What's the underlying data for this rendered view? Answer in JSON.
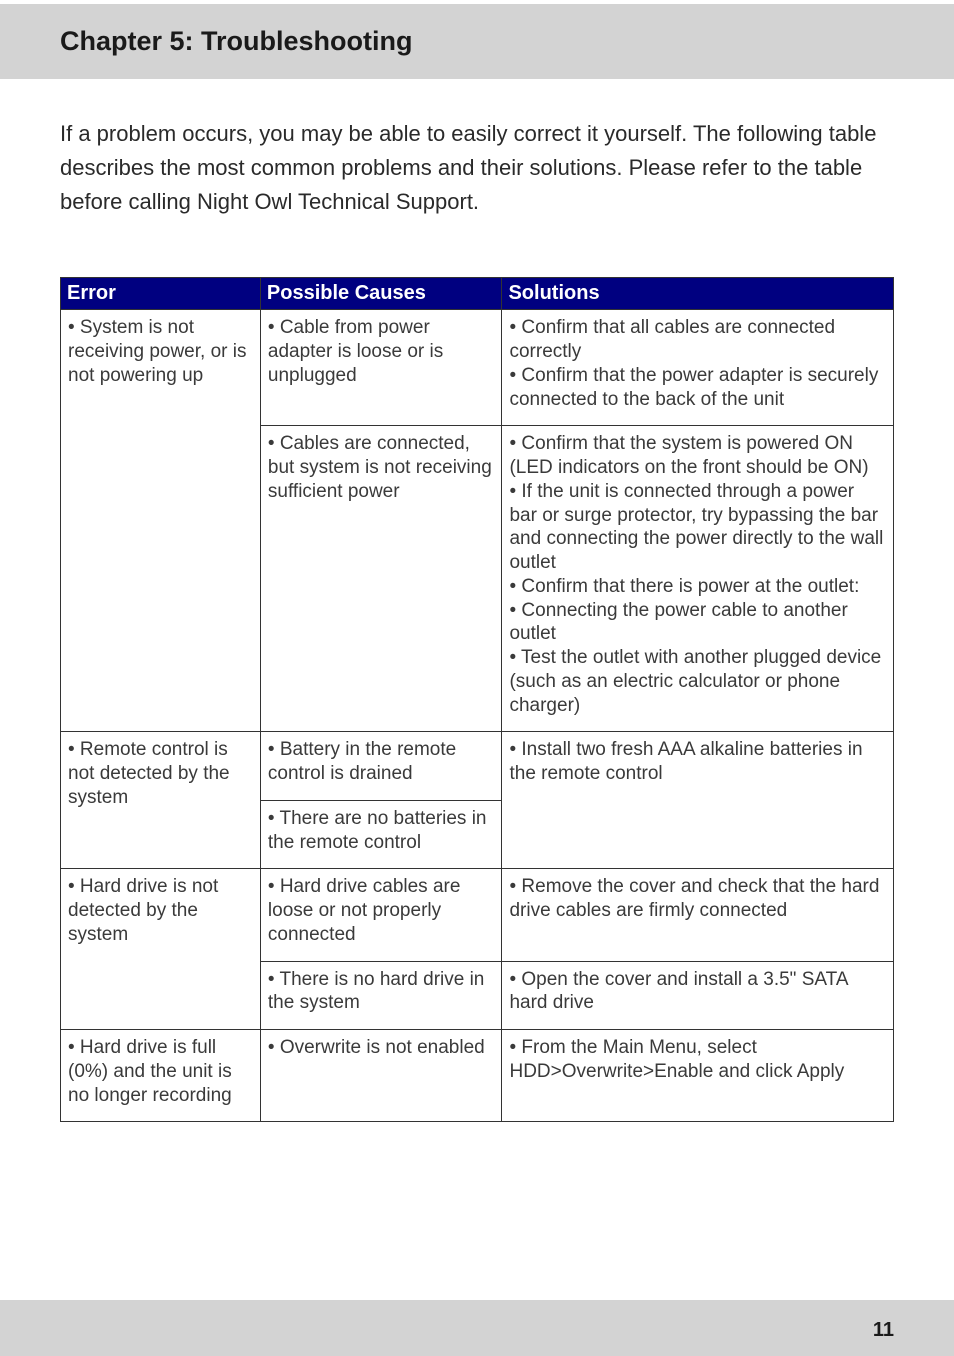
{
  "header": {
    "title": "Chapter 5: Troubleshooting"
  },
  "intro": "If a problem occurs, you may be able to easily correct it yourself. The following table describes the most common problems and their solutions. Please refer to the table before calling Night Owl Technical Support.",
  "table": {
    "columns": [
      "Error",
      "Possible Causes",
      "Solutions"
    ],
    "col_widths_pct": [
      24,
      29,
      47
    ],
    "header_bg": "#000080",
    "header_fg": "#ffffff",
    "border_color": "#333333",
    "body_font": "Arial Narrow",
    "body_fontsize_pt": 14,
    "header_fontsize_pt": 15,
    "rows": [
      {
        "error": "• System is not receiving power, or is not powering up",
        "error_rowspan": 2,
        "cause": "• Cable from power adapter is loose or is unplugged",
        "solution": "• Confirm that all cables are connected correctly\n• Confirm that the power adapter is securely connected to the back of the unit"
      },
      {
        "cause": "• Cables are connected, but system is not receiving sufficient power",
        "solution": "• Confirm that the system is powered ON (LED indicators on the front should be ON)\n• If the unit is connected through a power bar or surge protector, try bypassing the bar and connecting the power directly to the wall outlet\n• Confirm that there is power at the outlet:\n• Connecting the power cable to another outlet\n• Test the outlet with another plugged device (such as an electric calculator or phone charger)"
      },
      {
        "error": "• Remote control is not detected by the system",
        "error_rowspan": 2,
        "cause": "• Battery in the remote control is drained",
        "solution": "• Install two fresh AAA alkaline batteries in the remote control",
        "solution_rowspan": 2
      },
      {
        "cause": "• There are no batteries in the remote control"
      },
      {
        "error": "• Hard drive is not detected by the system",
        "error_rowspan": 2,
        "cause": "• Hard drive cables are loose or not properly connected",
        "solution": "• Remove the cover and check that the hard drive cables are firmly connected"
      },
      {
        "cause": "• There is no hard drive in the system",
        "solution": "• Open the cover and install a 3.5\" SATA hard drive"
      },
      {
        "error": "• Hard drive is full (0%) and the unit is no longer recording",
        "cause": "• Overwrite is not enabled",
        "solution": "• From the Main Menu, select HDD>Overwrite>Enable and click Apply"
      }
    ]
  },
  "footer": {
    "page_number": "11"
  },
  "colors": {
    "header_bar_bg": "#d3d3d3",
    "footer_bar_bg": "#d3d3d3",
    "page_bg": "#ffffff",
    "body_text": "#3a3a3a",
    "heading_text": "#1a1a1a"
  }
}
